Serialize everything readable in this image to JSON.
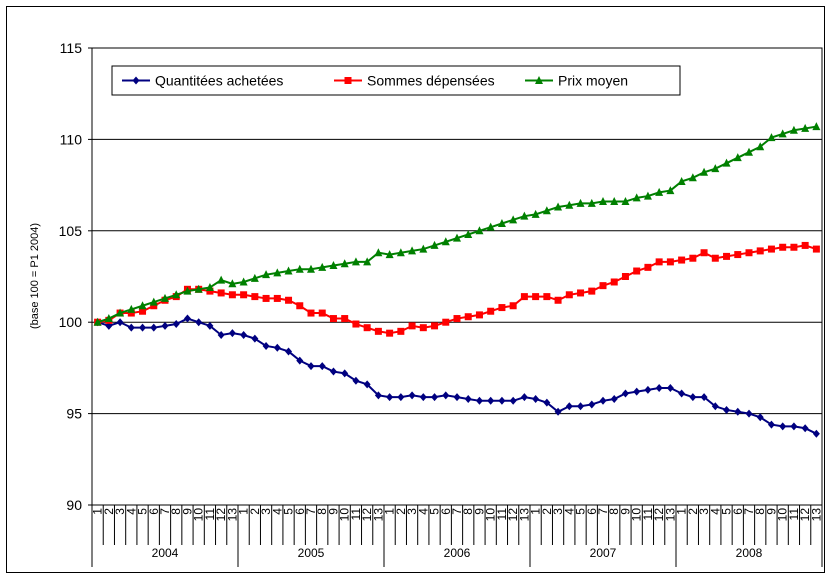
{
  "chart_data": {
    "type": "line",
    "y_label": "(base 100 = P1 2004)",
    "categories": [
      "1",
      "2",
      "3",
      "4",
      "5",
      "6",
      "7",
      "8",
      "9",
      "10",
      "11",
      "12",
      "13",
      "1",
      "2",
      "3",
      "4",
      "5",
      "6",
      "7",
      "8",
      "9",
      "10",
      "11",
      "12",
      "13",
      "1",
      "2",
      "3",
      "4",
      "5",
      "6",
      "7",
      "8",
      "9",
      "10",
      "11",
      "12",
      "13",
      "1",
      "2",
      "3",
      "4",
      "5",
      "6",
      "7",
      "8",
      "9",
      "10",
      "11",
      "12",
      "13",
      "1",
      "2",
      "3",
      "4",
      "5",
      "6",
      "7",
      "8",
      "9",
      "10",
      "11",
      "12",
      "13"
    ],
    "groups": [
      "2004",
      "2005",
      "2006",
      "2007",
      "2008"
    ],
    "series": [
      {
        "name": "Quantitées achetées",
        "color": "#000080",
        "marker": "diamond",
        "values": [
          100,
          99.8,
          100,
          99.7,
          99.7,
          99.7,
          99.8,
          99.9,
          100.2,
          100,
          99.8,
          99.3,
          99.4,
          99.3,
          99.1,
          98.7,
          98.6,
          98.4,
          97.9,
          97.6,
          97.6,
          97.3,
          97.2,
          96.8,
          96.6,
          96.0,
          95.9,
          95.9,
          96.0,
          95.9,
          95.9,
          96.0,
          95.9,
          95.8,
          95.7,
          95.7,
          95.7,
          95.7,
          95.9,
          95.8,
          95.6,
          95.1,
          95.4,
          95.4,
          95.5,
          95.7,
          95.8,
          96.1,
          96.2,
          96.3,
          96.4,
          96.4,
          96.1,
          95.9,
          95.9,
          95.4,
          95.2,
          95.1,
          95.0,
          94.8,
          94.4,
          94.3,
          94.3,
          94.2,
          93.9
        ]
      },
      {
        "name": "Sommes dépensées",
        "color": "#ff0000",
        "marker": "square",
        "values": [
          100,
          100.1,
          100.5,
          100.5,
          100.6,
          100.9,
          101.2,
          101.4,
          101.8,
          101.8,
          101.7,
          101.6,
          101.5,
          101.5,
          101.4,
          101.3,
          101.3,
          101.2,
          100.9,
          100.5,
          100.5,
          100.2,
          100.2,
          99.9,
          99.7,
          99.5,
          99.4,
          99.5,
          99.8,
          99.7,
          99.8,
          100.0,
          100.2,
          100.3,
          100.4,
          100.6,
          100.8,
          100.9,
          101.4,
          101.4,
          101.4,
          101.2,
          101.5,
          101.6,
          101.7,
          102.0,
          102.2,
          102.5,
          102.8,
          103.0,
          103.3,
          103.3,
          103.4,
          103.5,
          103.8,
          103.5,
          103.6,
          103.7,
          103.8,
          103.9,
          104.0,
          104.1,
          104.1,
          104.2,
          104.0
        ]
      },
      {
        "name": "Prix moyen",
        "color": "#008000",
        "marker": "triangle",
        "values": [
          100,
          100.2,
          100.5,
          100.7,
          100.9,
          101.1,
          101.3,
          101.5,
          101.7,
          101.8,
          101.9,
          102.3,
          102.1,
          102.2,
          102.4,
          102.6,
          102.7,
          102.8,
          102.9,
          102.9,
          103.0,
          103.1,
          103.2,
          103.3,
          103.3,
          103.8,
          103.7,
          103.8,
          103.9,
          104.0,
          104.2,
          104.4,
          104.6,
          104.8,
          105.0,
          105.2,
          105.4,
          105.6,
          105.8,
          105.9,
          106.1,
          106.3,
          106.4,
          106.5,
          106.5,
          106.6,
          106.6,
          106.6,
          106.8,
          106.9,
          107.1,
          107.2,
          107.7,
          107.9,
          108.2,
          108.4,
          108.7,
          109.0,
          109.3,
          109.6,
          110.1,
          110.3,
          110.5,
          110.6,
          110.7
        ]
      }
    ],
    "ylim": [
      90,
      115
    ],
    "yticks": [
      90,
      95,
      100,
      105,
      110,
      115
    ],
    "grid": true,
    "legend": "top-left"
  }
}
